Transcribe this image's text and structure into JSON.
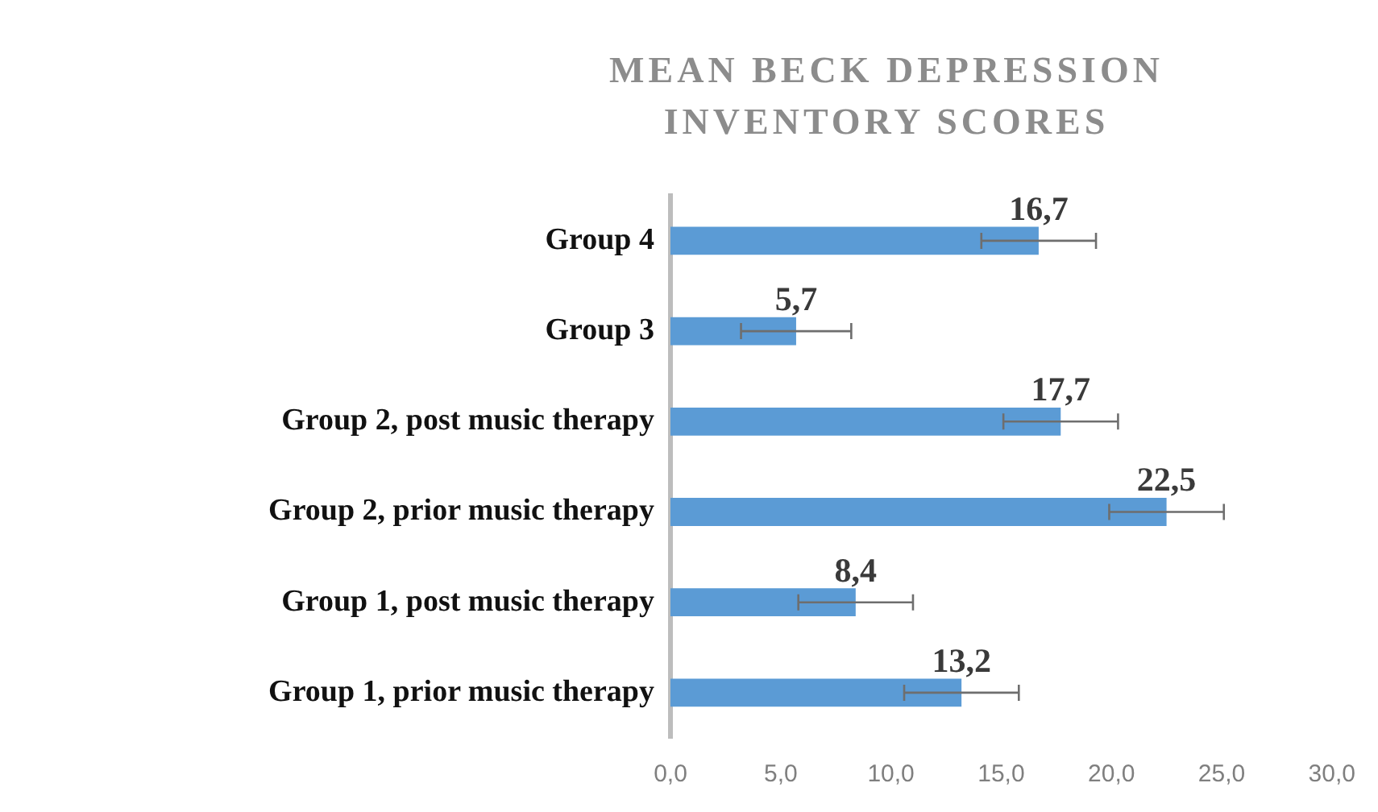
{
  "chart_data": {
    "type": "bar",
    "orientation": "horizontal",
    "title": "MEAN BECK DEPRESSION INVENTORY SCORES",
    "categories": [
      "Group 4",
      "Group 3",
      "Group 2, post music therapy",
      "Group 2, prior music therapy",
      "Group 1, post music therapy",
      "Group 1, prior music therapy"
    ],
    "values": [
      16.7,
      5.7,
      17.7,
      22.5,
      8.4,
      13.2
    ],
    "errors": [
      2.6,
      2.5,
      2.6,
      2.6,
      2.6,
      2.6
    ],
    "value_labels": [
      "16,7",
      "5,7",
      "17,7",
      "22,5",
      "8,4",
      "13,2"
    ],
    "color": "#5b9bd5",
    "xlim": [
      0,
      30
    ],
    "xticks": [
      {
        "value": 0,
        "label": "0,0"
      },
      {
        "value": 5,
        "label": "5,0"
      },
      {
        "value": 10,
        "label": "10,0"
      },
      {
        "value": 15,
        "label": "15,0"
      },
      {
        "value": 20,
        "label": "20,0"
      },
      {
        "value": 25,
        "label": "25,0"
      },
      {
        "value": 30,
        "label": "30,0"
      }
    ],
    "grid": false,
    "legend": false
  }
}
